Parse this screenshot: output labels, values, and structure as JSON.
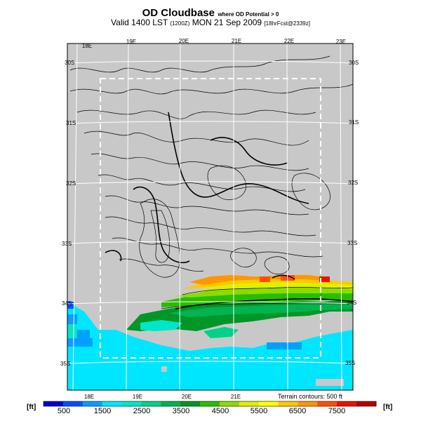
{
  "header": {
    "title": "OD Cloudbase",
    "title_note": "where OD Potential > 0",
    "valid_line": "Valid 1400 LST",
    "valid_zone": "(1200Z)",
    "valid_date": "MON 21 Sep 2009",
    "valid_forecast": "[18hrFcst@2339z]"
  },
  "map": {
    "lon_labels_top": [
      "18E",
      "19E",
      "20E",
      "21E",
      "22E",
      "23E"
    ],
    "lon_labels_bottom": [
      "18E",
      "19E",
      "20E",
      "21E"
    ],
    "lat_labels_left": [
      "30S",
      "31S",
      "32S",
      "33S",
      "34S",
      "35S"
    ],
    "lat_labels_right": [
      "30S",
      "31S",
      "32S",
      "33S",
      "34S",
      "35S"
    ],
    "terrain_note": "Terrain contours: 500 ft",
    "land_color": "#c8c8c8",
    "sea_color": "#00e6ff",
    "contour_color": "#000000",
    "box_color": "#ffffff"
  },
  "colorbar": {
    "unit_left": "[ft]",
    "unit_right": "[ft]",
    "tick_labels": [
      "500",
      "1500",
      "2500",
      "3500",
      "4500",
      "5500",
      "6500",
      "7500"
    ],
    "colors": [
      "#0000c8",
      "#0050ff",
      "#00a0ff",
      "#00e6ff",
      "#00e6c8",
      "#00d28c",
      "#00b450",
      "#009628",
      "#28be00",
      "#8cdc00",
      "#dcf000",
      "#ffff00",
      "#ffc800",
      "#ff9600",
      "#ff5000",
      "#e61400",
      "#b40000"
    ]
  }
}
